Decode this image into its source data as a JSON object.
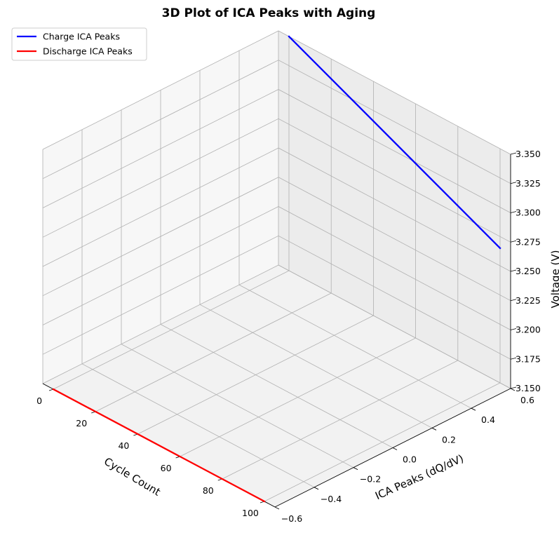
{
  "chart_data": {
    "type": "line",
    "projection": "3d",
    "title": "3D Plot of ICA Peaks with Aging",
    "xlabel": "Cycle Count",
    "ylabel": "ICA Peaks (dQ/dV)",
    "zlabel": "Voltage (V)",
    "xlim": [
      -5,
      105
    ],
    "ylim": [
      -0.6,
      0.6
    ],
    "zlim": [
      3.15,
      3.35
    ],
    "x_ticks": [
      0,
      20,
      40,
      60,
      80,
      100
    ],
    "x_tick_labels": [
      "0",
      "20",
      "40",
      "60",
      "80",
      "100"
    ],
    "y_ticks": [
      -0.6,
      -0.4,
      -0.2,
      0.0,
      0.2,
      0.4,
      0.6
    ],
    "y_tick_labels": [
      "−0.6",
      "−0.4",
      "−0.2",
      "0.0",
      "0.2",
      "0.4",
      "0.6"
    ],
    "z_ticks": [
      3.15,
      3.175,
      3.2,
      3.225,
      3.25,
      3.275,
      3.3,
      3.325,
      3.35
    ],
    "z_tick_labels": [
      "3.150",
      "3.175",
      "3.200",
      "3.225",
      "3.250",
      "3.275",
      "3.300",
      "3.325",
      "3.350"
    ],
    "grid": true,
    "legend_position": "top-left",
    "series": [
      {
        "name": "Charge ICA Peaks",
        "color": "#0000ff",
        "x": [
          0,
          100
        ],
        "y": [
          0.6,
          0.6
        ],
        "z": [
          3.35,
          3.265
        ]
      },
      {
        "name": "Discharge ICA Peaks",
        "color": "#ff0000",
        "x": [
          0,
          100
        ],
        "y": [
          -0.6,
          -0.6
        ],
        "z": [
          3.15,
          3.15
        ]
      }
    ]
  }
}
